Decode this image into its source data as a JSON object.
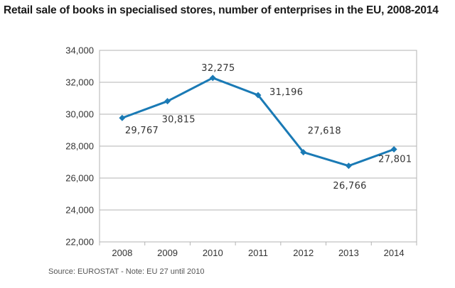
{
  "page": {
    "title": "Retail sale of books in specialised stores, number of enterprises in the EU, 2008-2014",
    "source": "Source: EUROSTAT - Note: EU 27 until 2010"
  },
  "chart_data": {
    "type": "line",
    "title": "Retail sale of books in specialised stores, number of enterprises in the EU, 2008-2014",
    "xlabel": "",
    "ylabel": "",
    "categories": [
      "2008",
      "2009",
      "2010",
      "2011",
      "2012",
      "2013",
      "2014"
    ],
    "series": [
      {
        "values": [
          29767,
          30815,
          32275,
          31196,
          27618,
          26766,
          27801
        ],
        "labels": [
          "29,767",
          "30,815",
          "32,275",
          "31,196",
          "27,618",
          "26,766",
          "27,801"
        ],
        "color": "#1a7ab5",
        "marker": "diamond"
      }
    ],
    "ylim": [
      22000,
      34000
    ],
    "yticks": [
      22000,
      24000,
      26000,
      28000,
      30000,
      32000,
      34000
    ],
    "ytick_labels": [
      "22,000",
      "24,000",
      "26,000",
      "28,000",
      "30,000",
      "32,000",
      "34,000"
    ],
    "grid": true,
    "legend": "none"
  }
}
